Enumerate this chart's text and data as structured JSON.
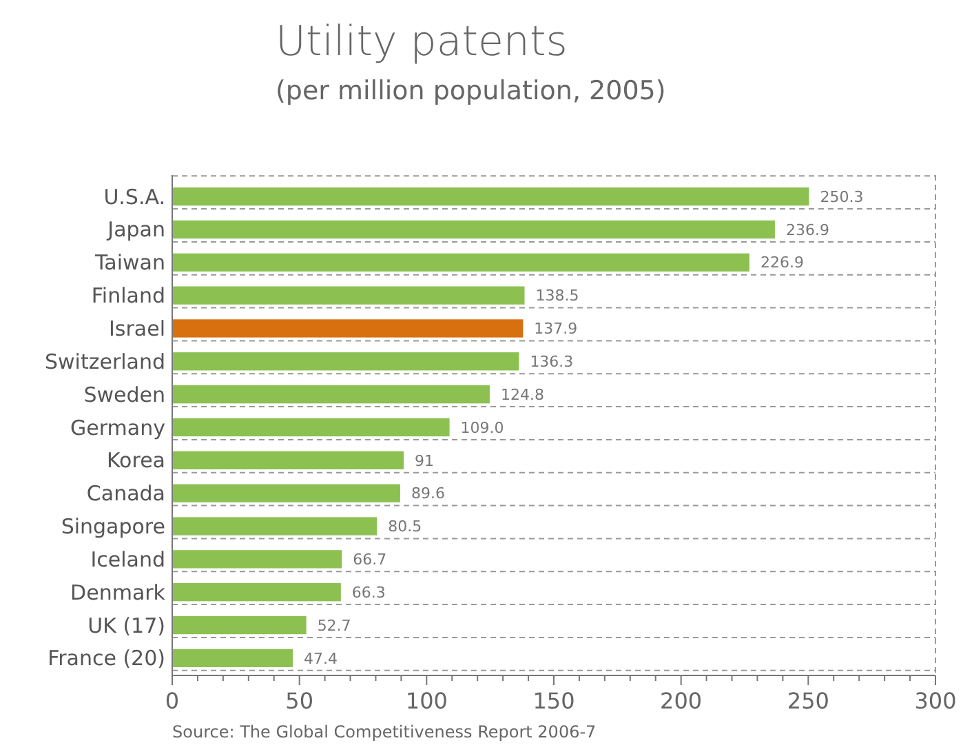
{
  "chart_data": {
    "type": "bar",
    "orientation": "horizontal",
    "title": "Utility patents",
    "subtitle": "(per million population, 2005)",
    "categories": [
      "U.S.A.",
      "Japan",
      "Taiwan",
      "Finland",
      "Israel",
      "Switzerland",
      "Sweden",
      "Germany",
      "Korea",
      "Canada",
      "Singapore",
      "Iceland",
      "Denmark",
      "UK (17)",
      "France (20)"
    ],
    "values": [
      250.3,
      236.9,
      226.9,
      138.5,
      137.9,
      136.3,
      124.8,
      109.0,
      91,
      89.6,
      80.5,
      66.7,
      66.3,
      52.7,
      47.4
    ],
    "value_labels": [
      "250.3",
      "236.9",
      "226.9",
      "138.5",
      "137.9",
      "136.3",
      "124.8",
      "109.0",
      "91",
      "89.6",
      "80.5",
      "66.7",
      "66.3",
      "52.7",
      "47.4"
    ],
    "colors": [
      "#8cc152",
      "#8cc152",
      "#8cc152",
      "#8cc152",
      "#d9700f",
      "#8cc152",
      "#8cc152",
      "#8cc152",
      "#8cc152",
      "#8cc152",
      "#8cc152",
      "#8cc152",
      "#8cc152",
      "#8cc152",
      "#8cc152"
    ],
    "xlim": [
      0,
      300
    ],
    "xticks": [
      0,
      {
        "value": 10,
        "label": null
      },
      {
        "value": 20,
        "label": null
      },
      {
        "value": 30,
        "label": null
      },
      {
        "value": 40,
        "label": null
      },
      50,
      {
        "value": 60,
        "label": null
      },
      {
        "value": 70,
        "label": null
      },
      {
        "value": 80,
        "label": null
      },
      {
        "value": 90,
        "label": null
      },
      100,
      {
        "value": 110,
        "label": null
      },
      {
        "value": 120,
        "label": null
      },
      {
        "value": 130,
        "label": null
      },
      {
        "value": 140,
        "label": null
      },
      150,
      {
        "value": 160,
        "label": null
      },
      {
        "value": 170,
        "label": null
      },
      {
        "value": 180,
        "label": null
      },
      {
        "value": 190,
        "label": null
      },
      200,
      {
        "value": 210,
        "label": null
      },
      {
        "value": 220,
        "label": null
      },
      {
        "value": 230,
        "label": null
      },
      {
        "value": 240,
        "label": null
      },
      250,
      {
        "value": 260,
        "label": null
      },
      {
        "value": 270,
        "label": null
      },
      {
        "value": 280,
        "label": null
      },
      {
        "value": 290,
        "label": null
      },
      300
    ],
    "grid": "y",
    "annotations": [
      "Source: The Global Competitiveness Report 2006-7"
    ]
  }
}
